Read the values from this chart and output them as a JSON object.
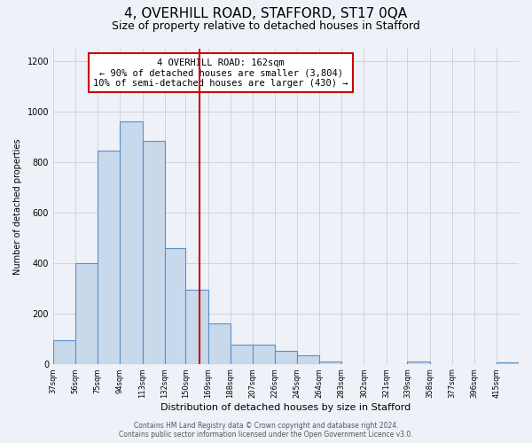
{
  "title": "4, OVERHILL ROAD, STAFFORD, ST17 0QA",
  "subtitle": "Size of property relative to detached houses in Stafford",
  "xlabel": "Distribution of detached houses by size in Stafford",
  "ylabel": "Number of detached properties",
  "bar_labels": [
    "37sqm",
    "56sqm",
    "75sqm",
    "94sqm",
    "113sqm",
    "132sqm",
    "150sqm",
    "169sqm",
    "188sqm",
    "207sqm",
    "226sqm",
    "245sqm",
    "264sqm",
    "283sqm",
    "302sqm",
    "321sqm",
    "339sqm",
    "358sqm",
    "377sqm",
    "396sqm",
    "415sqm"
  ],
  "bar_values": [
    95,
    400,
    845,
    960,
    885,
    460,
    295,
    160,
    75,
    75,
    50,
    35,
    10,
    0,
    0,
    0,
    10,
    0,
    0,
    0,
    5
  ],
  "bin_edges": [
    37,
    56,
    75,
    94,
    113,
    132,
    150,
    169,
    188,
    207,
    226,
    245,
    264,
    283,
    302,
    321,
    339,
    358,
    377,
    396,
    415
  ],
  "bar_color": "#c9d9ec",
  "bar_edge_color": "#5b8fc7",
  "vline_x": 162,
  "vline_color": "#cc0000",
  "annotation_title": "4 OVERHILL ROAD: 162sqm",
  "annotation_line1": "← 90% of detached houses are smaller (3,804)",
  "annotation_line2": "10% of semi-detached houses are larger (430) →",
  "annotation_box_color": "#ffffff",
  "annotation_box_edge": "#cc0000",
  "footer1": "Contains HM Land Registry data © Crown copyright and database right 2024.",
  "footer2": "Contains public sector information licensed under the Open Government Licence v3.0.",
  "ylim": [
    0,
    1250
  ],
  "yticks": [
    0,
    200,
    400,
    600,
    800,
    1000,
    1200
  ],
  "background_color": "#eef2f8",
  "plot_background": "#eef2f8",
  "title_fontsize": 11,
  "subtitle_fontsize": 9,
  "xlabel_fontsize": 8,
  "ylabel_fontsize": 7,
  "ytick_fontsize": 7,
  "xtick_fontsize": 6
}
